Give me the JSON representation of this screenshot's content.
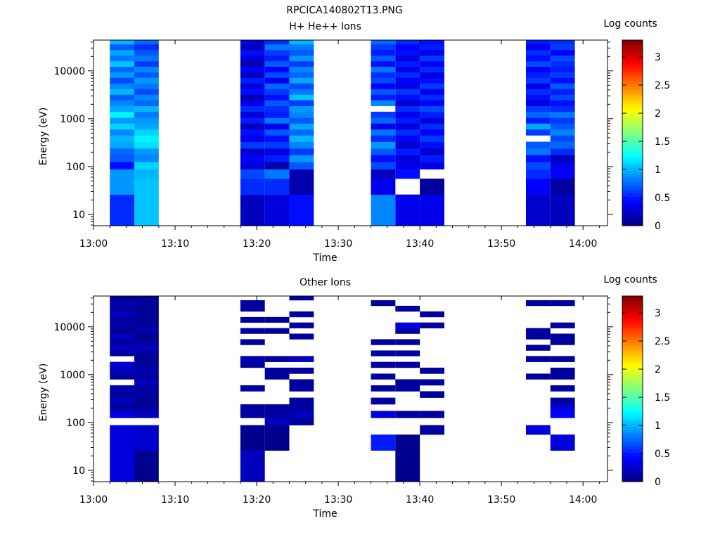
{
  "figure_title": "RPCICA140802T13.PNG",
  "chart_data": [
    {
      "type": "heatmap",
      "title": "H+ He++ Ions",
      "xlabel": "Time",
      "ylabel": "Energy (eV)",
      "colorbar_label": "Log counts",
      "x_range": [
        "13:00",
        "14:03"
      ],
      "x_ticks": [
        "13:00",
        "13:10",
        "13:20",
        "13:30",
        "13:40",
        "13:50",
        "14:00"
      ],
      "y_scale": "log",
      "y_range": [
        5.8,
        44000
      ],
      "y_ticks": [
        10,
        100,
        1000,
        10000
      ],
      "y_tick_labels": [
        "10",
        "100",
        "1000",
        "10000"
      ],
      "color_range": [
        0,
        3.3
      ],
      "colorbar_ticks": [
        0,
        0.5,
        1,
        1.5,
        2,
        2.5,
        3
      ],
      "colorbar_tick_labels": [
        "0",
        "0.5",
        "1",
        "1.5",
        "2",
        "2.5",
        "3"
      ],
      "energy_bins": [
        [
          5.8,
          26
        ],
        [
          26,
          56
        ],
        [
          56,
          88
        ],
        [
          88,
          125
        ],
        [
          125,
          175
        ],
        [
          175,
          240
        ],
        [
          240,
          330
        ],
        [
          330,
          450
        ],
        [
          450,
          600
        ],
        [
          600,
          800
        ],
        [
          800,
          1050
        ],
        [
          1050,
          1400
        ],
        [
          1400,
          1850
        ],
        [
          1850,
          2450
        ],
        [
          2450,
          3200
        ],
        [
          3200,
          4200
        ],
        [
          4200,
          5500
        ],
        [
          5500,
          7200
        ],
        [
          7200,
          9400
        ],
        [
          9400,
          12300
        ],
        [
          12300,
          16000
        ],
        [
          16000,
          21000
        ],
        [
          21000,
          27500
        ],
        [
          27500,
          36000
        ],
        [
          36000,
          44000
        ]
      ],
      "time_columns": [
        {
          "start": "13:02",
          "end": "13:05",
          "values": [
            0.55,
            0.9,
            0.9,
            0.45,
            0.7,
            0.75,
            0.95,
            1.0,
            0.85,
            1.1,
            0.9,
            1.2,
            0.95,
            0.85,
            0.7,
            1.0,
            0.85,
            0.65,
            0.9,
            0.75,
            1.05,
            0.8,
            0.95,
            0.7,
            1.0
          ]
        },
        {
          "start": "13:05",
          "end": "13:08",
          "values": [
            1.05,
            1.05,
            1.0,
            1.1,
            0.85,
            0.9,
            1.15,
            1.2,
            1.1,
            0.95,
            0.9,
            0.8,
            1.0,
            0.75,
            0.85,
            0.65,
            0.8,
            0.9,
            0.7,
            0.85,
            0.6,
            0.8,
            0.7,
            0.55,
            0.75
          ]
        },
        {
          "start": "13:18",
          "end": "13:21",
          "values": [
            0.2,
            0.55,
            0.65,
            0.3,
            0.4,
            0.25,
            0.6,
            0.35,
            0.45,
            0.2,
            0.5,
            0.3,
            0.55,
            0.35,
            0.15,
            0.45,
            0.3,
            0.5,
            0.2,
            0.4,
            0.15,
            0.3,
            0.45,
            0.2,
            0.35
          ]
        },
        {
          "start": "13:21",
          "end": "13:24",
          "values": [
            0.3,
            0.55,
            0.8,
            0.15,
            0.5,
            0.3,
            0.6,
            0.45,
            0.7,
            0.35,
            0.8,
            0.5,
            0.55,
            0.7,
            0.45,
            0.6,
            0.75,
            0.35,
            0.65,
            0.4,
            0.7,
            0.5,
            0.6,
            0.8,
            0.55
          ]
        },
        {
          "start": "13:24",
          "end": "13:27",
          "values": [
            0.45,
            0.15,
            0.15,
            0.7,
            0.9,
            0.6,
            0.85,
            1.0,
            0.75,
            0.95,
            0.7,
            0.85,
            0.9,
            0.6,
            1.05,
            0.8,
            0.65,
            0.95,
            0.75,
            0.85,
            0.6,
            0.9,
            0.7,
            0.8,
            1.0
          ]
        },
        {
          "start": "13:34",
          "end": "13:37",
          "values": [
            0.85,
            0.35,
            0.2,
            0.65,
            0.45,
            0.7,
            0.9,
            0.55,
            0.8,
            0.35,
            0.75,
            0.6,
            null,
            0.85,
            0.5,
            0.7,
            0.4,
            0.65,
            0.55,
            0.8,
            0.45,
            0.7,
            0.5,
            0.6,
            0.75
          ]
        },
        {
          "start": "13:37",
          "end": "13:40",
          "values": [
            0.35,
            null,
            0.45,
            0.35,
            0.3,
            0.5,
            0.25,
            0.4,
            0.55,
            0.3,
            0.5,
            0.35,
            0.55,
            0.25,
            0.45,
            0.6,
            0.3,
            0.4,
            0.55,
            0.35,
            0.5,
            0.3,
            0.45,
            0.4,
            0.55
          ]
        },
        {
          "start": "13:40",
          "end": "13:43",
          "values": [
            0.35,
            0.1,
            null,
            0.35,
            0.5,
            0.25,
            0.45,
            0.6,
            0.4,
            0.55,
            0.3,
            0.5,
            0.65,
            0.4,
            0.55,
            0.35,
            0.6,
            0.45,
            0.3,
            0.55,
            0.4,
            0.6,
            0.35,
            0.5,
            0.45
          ]
        },
        {
          "start": "13:53",
          "end": "13:56",
          "values": [
            0.25,
            0.4,
            0.55,
            0.65,
            0.45,
            0.8,
            0.7,
            null,
            0.6,
            0.95,
            0.5,
            0.75,
            0.6,
            0.3,
            0.45,
            0.55,
            0.35,
            0.6,
            0.5,
            0.4,
            0.65,
            0.45,
            0.55,
            0.35,
            0.5
          ]
        },
        {
          "start": "13:56",
          "end": "13:59",
          "values": [
            0.2,
            0.1,
            0.4,
            0.35,
            0.2,
            0.55,
            0.75,
            0.65,
            0.85,
            0.7,
            0.6,
            0.8,
            0.55,
            0.45,
            0.65,
            0.5,
            0.7,
            0.45,
            0.6,
            0.5,
            0.55,
            0.65,
            0.4,
            0.6,
            0.55
          ]
        }
      ]
    },
    {
      "type": "heatmap",
      "title": "Other Ions",
      "xlabel": "Time",
      "ylabel": "Energy (eV)",
      "colorbar_label": "Log counts",
      "x_range": [
        "13:00",
        "14:03"
      ],
      "x_ticks": [
        "13:00",
        "13:10",
        "13:20",
        "13:30",
        "13:40",
        "13:50",
        "14:00"
      ],
      "y_scale": "log",
      "y_range": [
        5.8,
        44000
      ],
      "y_ticks": [
        10,
        100,
        1000,
        10000
      ],
      "y_tick_labels": [
        "10",
        "100",
        "1000",
        "10000"
      ],
      "color_range": [
        0,
        3.3
      ],
      "colorbar_ticks": [
        0,
        0.5,
        1,
        1.5,
        2,
        2.5,
        3
      ],
      "colorbar_tick_labels": [
        "0",
        "0.5",
        "1",
        "1.5",
        "2",
        "2.5",
        "3"
      ],
      "energy_bins": [
        [
          5.8,
          26
        ],
        [
          26,
          56
        ],
        [
          56,
          88
        ],
        [
          88,
          125
        ],
        [
          125,
          175
        ],
        [
          175,
          240
        ],
        [
          240,
          330
        ],
        [
          330,
          450
        ],
        [
          450,
          600
        ],
        [
          600,
          800
        ],
        [
          800,
          1050
        ],
        [
          1050,
          1400
        ],
        [
          1400,
          1850
        ],
        [
          1850,
          2450
        ],
        [
          2450,
          3200
        ],
        [
          3200,
          4200
        ],
        [
          4200,
          5500
        ],
        [
          5500,
          7200
        ],
        [
          7200,
          9400
        ],
        [
          9400,
          12300
        ],
        [
          12300,
          16000
        ],
        [
          16000,
          21000
        ],
        [
          21000,
          27500
        ],
        [
          27500,
          36000
        ],
        [
          36000,
          44000
        ]
      ],
      "time_columns": [
        {
          "start": "13:02",
          "end": "13:05",
          "values": [
            0.3,
            0.3,
            0.3,
            null,
            0.3,
            0.1,
            0.2,
            0.1,
            0.15,
            null,
            0.1,
            0.2,
            0.25,
            null,
            0.1,
            0.2,
            0.1,
            0.2,
            0.05,
            0.15,
            0.1,
            0.2,
            0.1,
            0.15,
            0.05
          ]
        },
        {
          "start": "13:05",
          "end": "13:08",
          "values": [
            0.05,
            0.25,
            0.25,
            null,
            0.2,
            0.1,
            0.05,
            0.1,
            0.1,
            0.2,
            0.1,
            0.15,
            0.1,
            0.05,
            0.1,
            0.2,
            0.1,
            0.05,
            0.15,
            0.1,
            0.05,
            0.1,
            0.05,
            0.1,
            0.05
          ]
        },
        {
          "start": "13:18",
          "end": "13:21",
          "values": [
            0.2,
            0.05,
            0.05,
            null,
            0.1,
            0.1,
            null,
            null,
            0.1,
            null,
            null,
            null,
            0.1,
            0.15,
            null,
            null,
            0.1,
            null,
            0.1,
            null,
            0.1,
            null,
            0.1,
            0.1,
            null
          ]
        },
        {
          "start": "13:21",
          "end": "13:24",
          "values": [
            null,
            0.05,
            0.05,
            0.2,
            0.1,
            0.1,
            null,
            null,
            null,
            null,
            0.1,
            0.1,
            null,
            0.1,
            null,
            null,
            null,
            null,
            0.1,
            null,
            0.1,
            null,
            null,
            null,
            null
          ]
        },
        {
          "start": "13:24",
          "end": "13:27",
          "values": [
            null,
            null,
            null,
            0.1,
            0.2,
            0.1,
            0.1,
            null,
            0.1,
            0.1,
            null,
            0.1,
            null,
            0.2,
            null,
            null,
            null,
            0.1,
            null,
            0.1,
            null,
            0.1,
            null,
            null,
            0.1
          ]
        },
        {
          "start": "13:34",
          "end": "13:37",
          "values": [
            null,
            0.5,
            null,
            null,
            0.3,
            null,
            0.1,
            null,
            0.1,
            null,
            0.1,
            null,
            0.1,
            null,
            0.1,
            null,
            0.1,
            null,
            null,
            null,
            null,
            null,
            null,
            0.1,
            null
          ]
        },
        {
          "start": "13:37",
          "end": "13:40",
          "values": [
            0.05,
            0.05,
            null,
            null,
            0.1,
            null,
            null,
            null,
            0.1,
            0.1,
            null,
            null,
            0.1,
            null,
            0.1,
            null,
            0.1,
            null,
            0.1,
            0.3,
            null,
            null,
            0.1,
            null,
            null
          ]
        },
        {
          "start": "13:40",
          "end": "13:43",
          "values": [
            null,
            null,
            0.1,
            null,
            0.1,
            null,
            null,
            0.1,
            null,
            0.1,
            null,
            0.1,
            null,
            null,
            null,
            null,
            null,
            null,
            null,
            0.1,
            null,
            0.1,
            null,
            null,
            null
          ]
        },
        {
          "start": "13:53",
          "end": "13:56",
          "values": [
            null,
            null,
            0.3,
            null,
            null,
            null,
            null,
            null,
            null,
            null,
            0.1,
            null,
            null,
            0.1,
            null,
            0.1,
            null,
            0.1,
            0.1,
            null,
            null,
            null,
            null,
            0.1,
            null
          ]
        },
        {
          "start": "13:56",
          "end": "13:59",
          "values": [
            null,
            0.3,
            null,
            null,
            0.4,
            0.3,
            0.1,
            null,
            0.1,
            null,
            0.1,
            0.1,
            null,
            0.1,
            null,
            null,
            0.1,
            0.1,
            null,
            0.1,
            null,
            null,
            null,
            0.1,
            null
          ]
        }
      ]
    }
  ]
}
